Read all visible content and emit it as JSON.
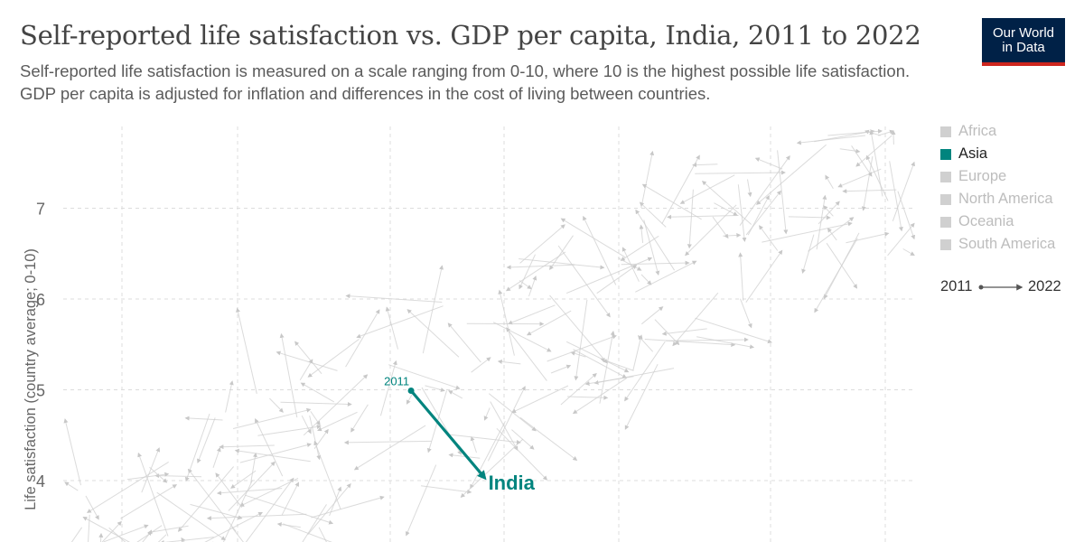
{
  "header": {
    "title": "Self-reported life satisfaction vs. GDP per capita, India, 2011 to 2022",
    "subtitle": "Self-reported life satisfaction is measured on a scale ranging from 0-10, where 10 is the highest possible life satisfaction. GDP per capita is adjusted for inflation and differences in the cost of living between countries."
  },
  "logo": {
    "line1": "Our World",
    "line2": "in Data"
  },
  "legend": {
    "items": [
      {
        "label": "Africa",
        "color": "#d0d0d0",
        "active": false
      },
      {
        "label": "Asia",
        "color": "#00847e",
        "active": true
      },
      {
        "label": "Europe",
        "color": "#d0d0d0",
        "active": false
      },
      {
        "label": "North America",
        "color": "#d0d0d0",
        "active": false
      },
      {
        "label": "Oceania",
        "color": "#d0d0d0",
        "active": false
      },
      {
        "label": "South America",
        "color": "#d0d0d0",
        "active": false
      }
    ],
    "timeline": {
      "start": "2011",
      "end": "2022"
    }
  },
  "chart_data": {
    "type": "scatter",
    "ylabel": "Life satisfaction (country average; 0-10)",
    "yticks": [
      4,
      5,
      6,
      7
    ],
    "ylim": [
      3.3,
      8.1
    ],
    "grid": true,
    "highlight_color": "#00847e",
    "background_color": "#cfcfcf",
    "highlight": {
      "name": "India",
      "start_label": "2011",
      "start": {
        "gdp": 4500,
        "ls": 4.99
      },
      "end": {
        "gdp": 6600,
        "ls": 4.03
      }
    }
  }
}
